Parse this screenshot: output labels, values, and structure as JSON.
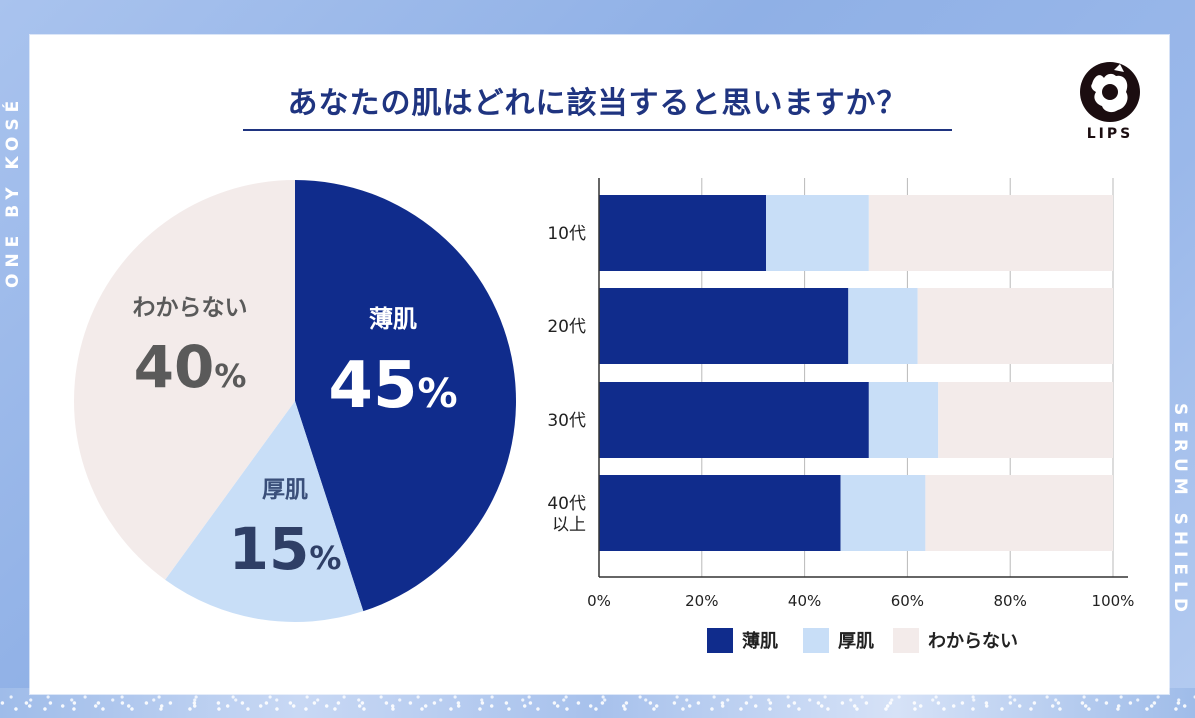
{
  "side_left_text": "ONE BY KOSÉ",
  "side_right_text": "SERUM SHIELD",
  "title": "あなたの肌はどれに該当すると思いますか？",
  "logo_text": "LIPS",
  "colors": {
    "thin": "#102c8c",
    "thick": "#c8def7",
    "unknown": "#f3ebea",
    "title": "#1f3480"
  },
  "chart_data": [
    {
      "type": "pie",
      "slices": [
        {
          "label": "薄肌",
          "value": 45,
          "display": "45",
          "color": "#102c8c"
        },
        {
          "label": "厚肌",
          "value": 15,
          "display": "15",
          "color": "#c8def7"
        },
        {
          "label": "わからない",
          "value": 40,
          "display": "40",
          "color": "#f3ebea"
        }
      ],
      "unit": "%"
    },
    {
      "type": "bar",
      "orientation": "horizontal",
      "stacked": true,
      "categories": [
        [
          "10代"
        ],
        [
          "20代"
        ],
        [
          "30代"
        ],
        [
          "40代",
          "以上"
        ]
      ],
      "series": [
        {
          "name": "薄肌",
          "values": [
            32.5,
            48.5,
            52.5,
            47
          ],
          "color": "#102c8c"
        },
        {
          "name": "厚肌",
          "values": [
            20,
            13.5,
            13.5,
            16.5
          ],
          "color": "#c8def7"
        },
        {
          "name": "わからない",
          "values": [
            47.5,
            38,
            34,
            36.5
          ],
          "color": "#f3ebea"
        }
      ],
      "xlim": [
        0,
        100
      ],
      "xticks": [
        "0%",
        "20%",
        "40%",
        "60%",
        "80%",
        "100%"
      ],
      "grid": true,
      "legend": "bottom"
    }
  ]
}
